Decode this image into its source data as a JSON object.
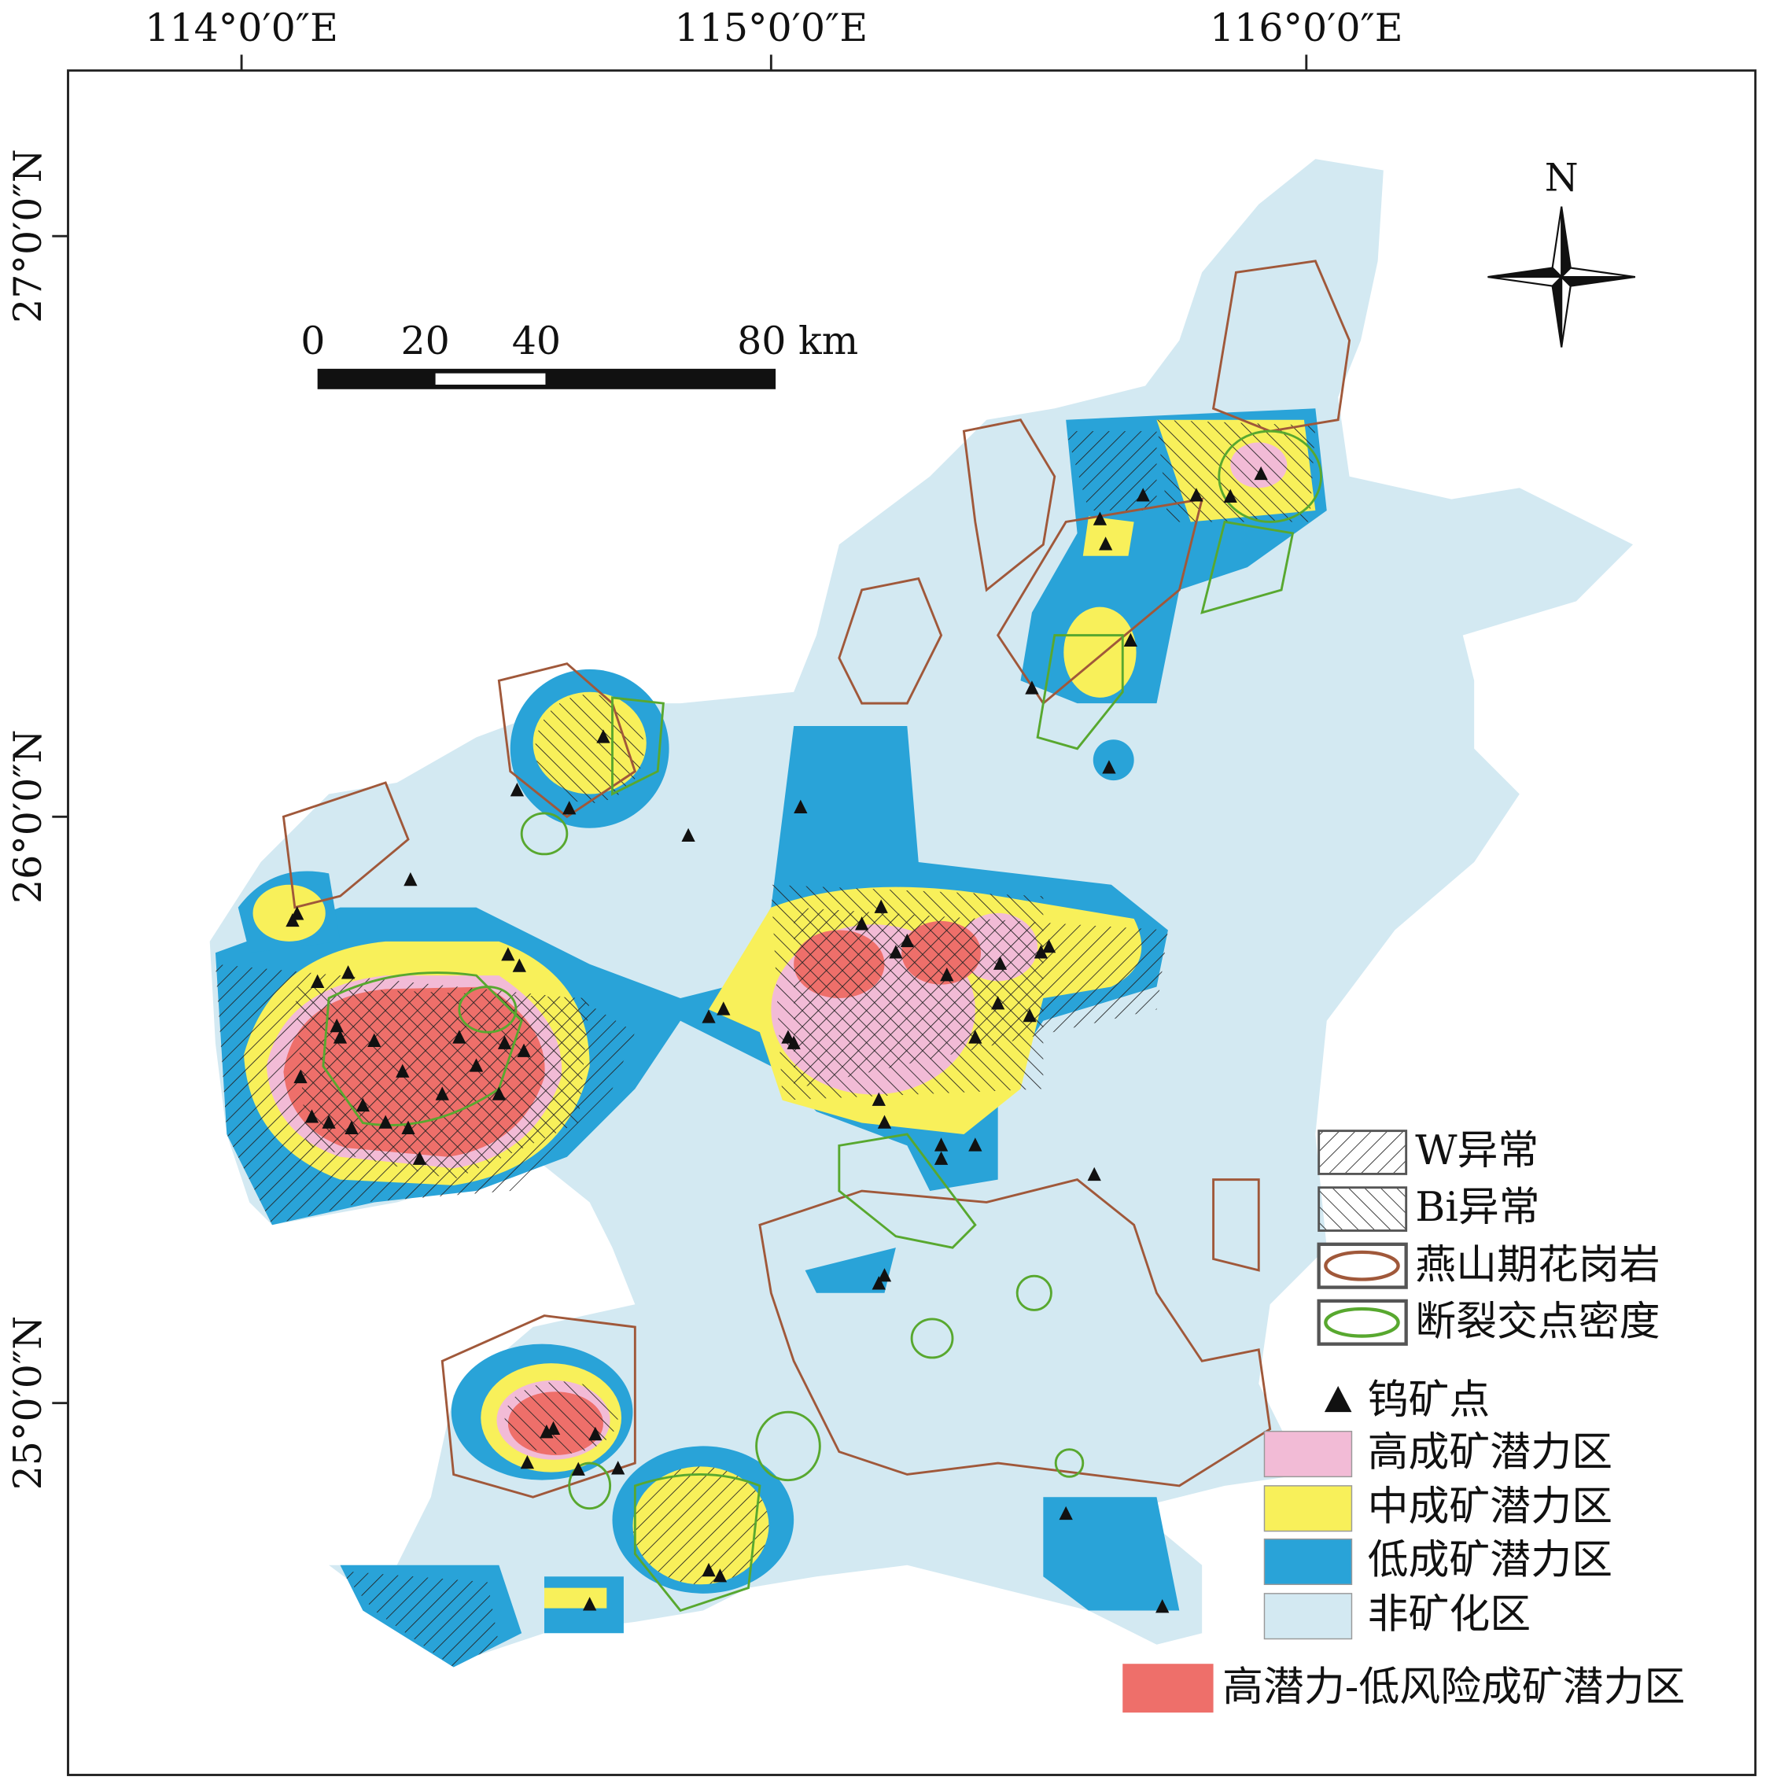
{
  "map": {
    "longitude_labels": [
      "114°0′0″E",
      "115°0′0″E",
      "116°0′0″E"
    ],
    "latitude_labels": [
      "27°0′0″N",
      "26°0′0″N",
      "25°0′0″N"
    ],
    "scale_bar": {
      "labels": [
        "0",
        "20",
        "40",
        "80 km"
      ]
    },
    "north_arrow": "N",
    "legend": {
      "items": [
        "W异常",
        "Bi异常",
        "燕山期花岗岩",
        "断裂交点密度",
        "钨矿点",
        "高成矿潜力区",
        "中成矿潜力区",
        "低成矿潜力区",
        "非矿化区",
        "高潜力-低风险成矿潜力区"
      ]
    }
  }
}
